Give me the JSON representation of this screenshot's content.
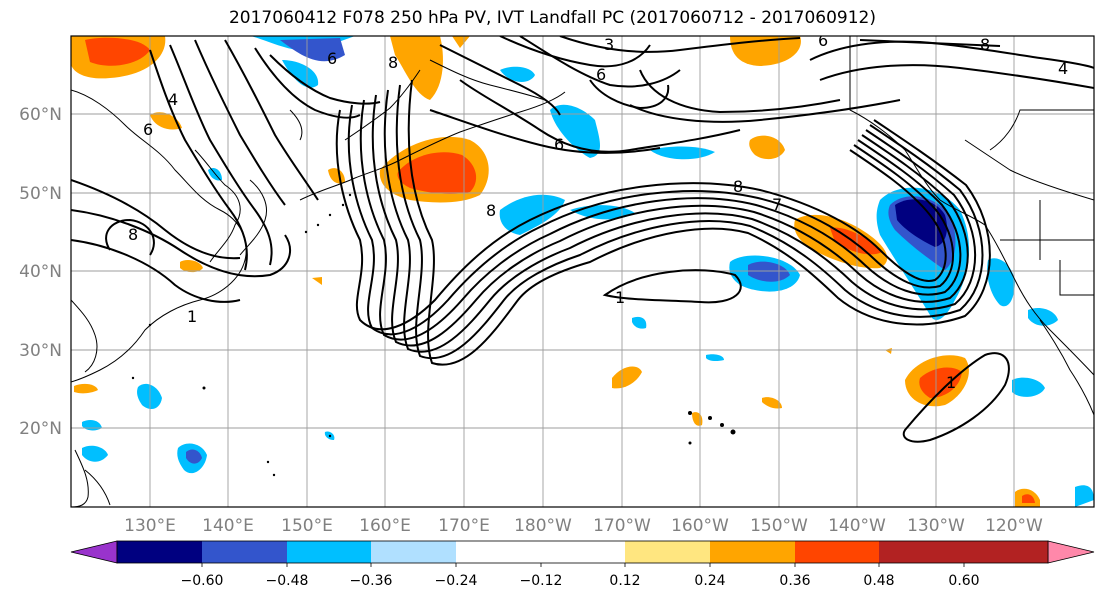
{
  "title": "2017060412 F078 250 hPa PV, IVT Landfall PC (2017060712 - 2017060912)",
  "lon_ticks": [
    "130°E",
    "140°E",
    "150°E",
    "160°E",
    "170°E",
    "180°W",
    "170°W",
    "160°W",
    "150°W",
    "140°W",
    "130°W",
    "120°W"
  ],
  "lat_ticks": [
    "60°N",
    "50°N",
    "40°N",
    "30°N",
    "20°N"
  ],
  "colorbar": {
    "ticks": [
      "−0.60",
      "−0.48",
      "−0.36",
      "−0.24",
      "−0.12",
      "0.12",
      "0.24",
      "0.36",
      "0.48",
      "0.60"
    ],
    "colors": [
      "#9933cc",
      "#000080",
      "#3355cc",
      "#00bfff",
      "#b0e0ff",
      "#ffffff",
      "#ffe680",
      "#ffa500",
      "#ff4500",
      "#b22222",
      "#ff88aa"
    ]
  },
  "contour_labels": [
    "3",
    "6",
    "6",
    "6",
    "8",
    "8",
    "8",
    "4",
    "4",
    "6",
    "6",
    "8",
    "7",
    "1",
    "1",
    "1",
    "8"
  ]
}
